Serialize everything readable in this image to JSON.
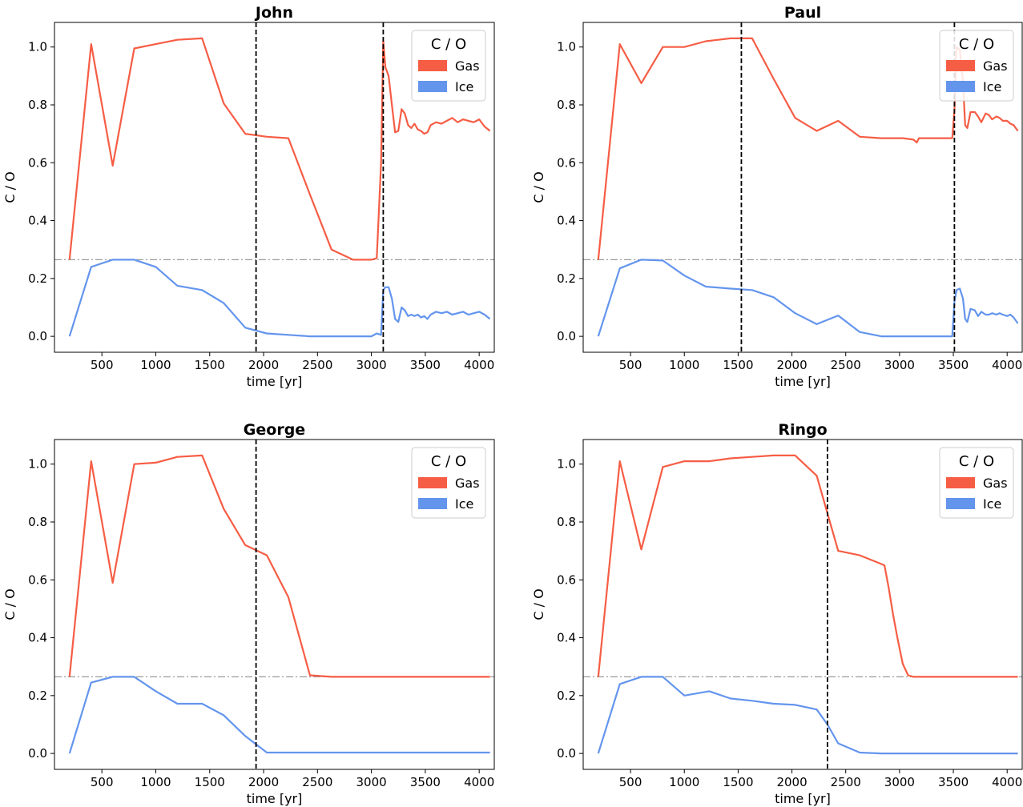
{
  "colors": {
    "gas": "#f65d45",
    "ice": "#6495ed",
    "axis": "#000000",
    "threshold": "#9a9a9a"
  },
  "chart_data": [
    {
      "type": "line",
      "title": "John",
      "xlabel": "time [yr]",
      "ylabel": "C / O",
      "xlim": [
        60,
        4140
      ],
      "ylim": [
        -0.055,
        1.085
      ],
      "xticks": [
        500,
        1000,
        1500,
        2000,
        2500,
        3000,
        3500,
        4000
      ],
      "yticks": [
        0.0,
        0.2,
        0.4,
        0.6,
        0.8,
        1.0
      ],
      "legend": {
        "title": "C / O",
        "position": "top-right"
      },
      "hline": 0.265,
      "vlines": [
        1930,
        3110
      ],
      "series": [
        {
          "name": "Gas",
          "x": [
            200,
            400,
            600,
            800,
            1000,
            1200,
            1430,
            1630,
            1830,
            2030,
            2230,
            2430,
            2630,
            2830,
            3000,
            3050,
            3090,
            3110,
            3130,
            3160,
            3190,
            3220,
            3250,
            3280,
            3310,
            3340,
            3370,
            3400,
            3430,
            3460,
            3490,
            3520,
            3550,
            3600,
            3650,
            3700,
            3750,
            3800,
            3850,
            3900,
            3950,
            4000,
            4050,
            4100
          ],
          "values": [
            0.265,
            1.01,
            0.59,
            0.995,
            1.01,
            1.025,
            1.03,
            0.805,
            0.7,
            0.69,
            0.685,
            0.49,
            0.3,
            0.265,
            0.265,
            0.27,
            0.6,
            1.02,
            0.93,
            0.9,
            0.8,
            0.705,
            0.71,
            0.785,
            0.77,
            0.73,
            0.72,
            0.735,
            0.715,
            0.71,
            0.7,
            0.705,
            0.73,
            0.74,
            0.735,
            0.745,
            0.755,
            0.74,
            0.75,
            0.745,
            0.74,
            0.75,
            0.725,
            0.71
          ]
        },
        {
          "name": "Ice",
          "x": [
            200,
            400,
            600,
            800,
            1000,
            1200,
            1430,
            1630,
            1830,
            2030,
            2230,
            2430,
            2630,
            2830,
            3000,
            3050,
            3090,
            3110,
            3130,
            3160,
            3190,
            3220,
            3250,
            3280,
            3310,
            3340,
            3370,
            3400,
            3430,
            3460,
            3490,
            3520,
            3550,
            3600,
            3650,
            3700,
            3750,
            3800,
            3850,
            3900,
            3950,
            4000,
            4050,
            4100
          ],
          "values": [
            0.0,
            0.24,
            0.265,
            0.265,
            0.24,
            0.175,
            0.16,
            0.115,
            0.03,
            0.01,
            0.005,
            0.0,
            0.0,
            0.0,
            0.0,
            0.01,
            0.005,
            0.16,
            0.17,
            0.17,
            0.13,
            0.06,
            0.05,
            0.1,
            0.09,
            0.07,
            0.075,
            0.07,
            0.075,
            0.065,
            0.07,
            0.06,
            0.075,
            0.085,
            0.08,
            0.085,
            0.075,
            0.08,
            0.085,
            0.075,
            0.08,
            0.085,
            0.075,
            0.06
          ]
        }
      ]
    },
    {
      "type": "line",
      "title": "Paul",
      "xlabel": "time [yr]",
      "ylabel": "C / O",
      "xlim": [
        60,
        4140
      ],
      "ylim": [
        -0.055,
        1.085
      ],
      "xticks": [
        500,
        1000,
        1500,
        2000,
        2500,
        3000,
        3500,
        4000
      ],
      "yticks": [
        0.0,
        0.2,
        0.4,
        0.6,
        0.8,
        1.0
      ],
      "legend": {
        "title": "C / O",
        "position": "top-right"
      },
      "hline": 0.265,
      "vlines": [
        1530,
        3510
      ],
      "series": [
        {
          "name": "Gas",
          "x": [
            200,
            400,
            600,
            800,
            1000,
            1200,
            1430,
            1630,
            1830,
            2030,
            2230,
            2430,
            2630,
            2830,
            3030,
            3130,
            3160,
            3180,
            3230,
            3330,
            3430,
            3490,
            3510,
            3530,
            3560,
            3590,
            3610,
            3630,
            3660,
            3700,
            3730,
            3760,
            3800,
            3830,
            3860,
            3900,
            3930,
            3960,
            4000,
            4030,
            4060,
            4100
          ],
          "values": [
            0.265,
            1.01,
            0.875,
            1.0,
            1.0,
            1.02,
            1.03,
            1.03,
            0.89,
            0.755,
            0.71,
            0.745,
            0.69,
            0.685,
            0.685,
            0.68,
            0.67,
            0.685,
            0.685,
            0.685,
            0.685,
            0.685,
            0.78,
            1.0,
            0.99,
            0.88,
            0.73,
            0.72,
            0.775,
            0.775,
            0.76,
            0.74,
            0.77,
            0.765,
            0.75,
            0.76,
            0.755,
            0.745,
            0.745,
            0.735,
            0.73,
            0.71
          ]
        },
        {
          "name": "Ice",
          "x": [
            200,
            400,
            600,
            800,
            1000,
            1200,
            1430,
            1630,
            1830,
            2030,
            2230,
            2430,
            2630,
            2830,
            3030,
            3230,
            3430,
            3490,
            3510,
            3530,
            3560,
            3590,
            3610,
            3630,
            3660,
            3700,
            3730,
            3760,
            3800,
            3830,
            3860,
            3900,
            3930,
            3960,
            4000,
            4030,
            4060,
            4100
          ],
          "values": [
            0.0,
            0.235,
            0.265,
            0.262,
            0.21,
            0.172,
            0.165,
            0.16,
            0.135,
            0.08,
            0.042,
            0.072,
            0.015,
            0.0,
            0.0,
            0.0,
            0.0,
            0.0,
            0.12,
            0.16,
            0.165,
            0.13,
            0.06,
            0.05,
            0.095,
            0.09,
            0.07,
            0.085,
            0.075,
            0.075,
            0.08,
            0.075,
            0.08,
            0.075,
            0.07,
            0.075,
            0.065,
            0.045
          ]
        }
      ]
    },
    {
      "type": "line",
      "title": "George",
      "xlabel": "time [yr]",
      "ylabel": "C / O",
      "xlim": [
        60,
        4140
      ],
      "ylim": [
        -0.055,
        1.085
      ],
      "xticks": [
        500,
        1000,
        1500,
        2000,
        2500,
        3000,
        3500,
        4000
      ],
      "yticks": [
        0.0,
        0.2,
        0.4,
        0.6,
        0.8,
        1.0
      ],
      "legend": {
        "title": "C / O",
        "position": "top-right"
      },
      "hline": 0.265,
      "vlines": [
        1930
      ],
      "series": [
        {
          "name": "Gas",
          "x": [
            200,
            400,
            600,
            800,
            1000,
            1200,
            1430,
            1630,
            1830,
            2030,
            2230,
            2430,
            2630,
            2830,
            3030,
            3230,
            3430,
            3630,
            3830,
            4030,
            4100
          ],
          "values": [
            0.265,
            1.01,
            0.59,
            1.0,
            1.005,
            1.025,
            1.03,
            0.845,
            0.72,
            0.685,
            0.54,
            0.27,
            0.265,
            0.265,
            0.265,
            0.265,
            0.265,
            0.265,
            0.265,
            0.265,
            0.265
          ]
        },
        {
          "name": "Ice",
          "x": [
            200,
            400,
            600,
            800,
            1000,
            1200,
            1430,
            1630,
            1830,
            2030,
            2230,
            2430,
            2630,
            2830,
            3030,
            3230,
            3430,
            3630,
            3830,
            4030,
            4100
          ],
          "values": [
            0.0,
            0.245,
            0.265,
            0.265,
            0.215,
            0.172,
            0.172,
            0.132,
            0.06,
            0.003,
            0.003,
            0.003,
            0.003,
            0.003,
            0.003,
            0.003,
            0.003,
            0.003,
            0.003,
            0.003,
            0.003
          ]
        }
      ]
    },
    {
      "type": "line",
      "title": "Ringo",
      "xlabel": "time [yr]",
      "ylabel": "C / O",
      "xlim": [
        60,
        4140
      ],
      "ylim": [
        -0.055,
        1.085
      ],
      "xticks": [
        500,
        1000,
        1500,
        2000,
        2500,
        3000,
        3500,
        4000
      ],
      "yticks": [
        0.0,
        0.2,
        0.4,
        0.6,
        0.8,
        1.0
      ],
      "legend": {
        "title": "C / O",
        "position": "top-right"
      },
      "hline": 0.265,
      "vlines": [
        2330
      ],
      "series": [
        {
          "name": "Gas",
          "x": [
            200,
            400,
            600,
            800,
            1000,
            1230,
            1430,
            1630,
            1830,
            2030,
            2230,
            2330,
            2430,
            2630,
            2830,
            2860,
            2900,
            2940,
            2980,
            3030,
            3080,
            3130,
            3330,
            3530,
            3730,
            3930,
            4100
          ],
          "values": [
            0.265,
            1.01,
            0.705,
            0.99,
            1.01,
            1.01,
            1.02,
            1.025,
            1.03,
            1.03,
            0.96,
            0.83,
            0.7,
            0.685,
            0.655,
            0.65,
            0.57,
            0.48,
            0.4,
            0.31,
            0.27,
            0.265,
            0.265,
            0.265,
            0.265,
            0.265,
            0.265
          ]
        },
        {
          "name": "Ice",
          "x": [
            200,
            400,
            600,
            800,
            1000,
            1230,
            1430,
            1630,
            1830,
            2030,
            2230,
            2330,
            2430,
            2630,
            2830,
            3030,
            3230,
            3430,
            3630,
            3830,
            4030,
            4100
          ],
          "values": [
            0.0,
            0.24,
            0.265,
            0.265,
            0.2,
            0.215,
            0.19,
            0.182,
            0.172,
            0.168,
            0.152,
            0.1,
            0.035,
            0.003,
            0.0,
            0.0,
            0.0,
            0.0,
            0.0,
            0.0,
            0.0,
            0.0
          ]
        }
      ]
    }
  ]
}
